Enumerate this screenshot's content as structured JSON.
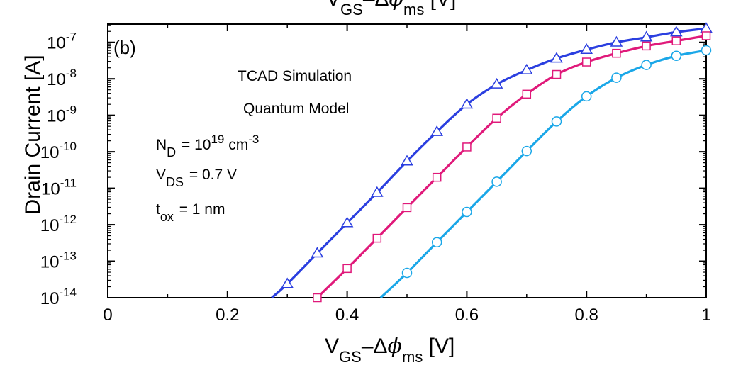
{
  "chart_data": {
    "type": "line",
    "xlim": [
      0,
      1
    ],
    "ylim_log10": [
      -14,
      -6.5
    ],
    "y_scale": "log",
    "x_ticks": [
      "0",
      "0.2",
      "0.4",
      "0.6",
      "0.8",
      "1"
    ],
    "x_tick_values": [
      0,
      0.2,
      0.4,
      0.6,
      0.8,
      1.0
    ],
    "y_tick_exponents": [
      "-7",
      "-8",
      "-9",
      "-10",
      "-11",
      "-12",
      "-13",
      "-14"
    ],
    "y_tick_base": "10",
    "y_tick_values_log10": [
      -7,
      -8,
      -9,
      -10,
      -11,
      -12,
      -13,
      -14
    ],
    "ylabel": "Drain Current [A]",
    "xlabel": {
      "main": "V",
      "sub1": "GS",
      "mid": "–Δ",
      "phi": "ϕ",
      "sub2": "ms",
      "unit": " [V]"
    },
    "top_cut_label": {
      "main": "V",
      "sub1": "GS",
      "mid": "–Δ",
      "phi": "ϕ",
      "sub2": "ms",
      "unit": " [V]"
    },
    "panel_label": "(b)",
    "annotations": {
      "line1": "TCAD Simulation",
      "line2": "Quantum Model",
      "nd": {
        "sym": "N",
        "sub": "D",
        "eq": "  = 10",
        "exp": "19",
        "unit": " cm",
        "unit_exp": "-3"
      },
      "vds": {
        "sym": "V",
        "sub": "DS",
        "eq": "  = 0.7 V"
      },
      "tox": {
        "sym": "t",
        "sub": "ox",
        "eq": "   = 1 nm"
      }
    },
    "grid": false,
    "series": [
      {
        "marker": "triangle",
        "color": "#2b3fe0",
        "x": [
          0.3,
          0.35,
          0.4,
          0.45,
          0.5,
          0.55,
          0.6,
          0.65,
          0.7,
          0.75,
          0.8,
          0.85,
          0.9,
          0.95,
          1.0
        ],
        "log10_y": [
          -13.62,
          -12.78,
          -11.95,
          -11.12,
          -10.26,
          -9.45,
          -8.7,
          -8.15,
          -7.76,
          -7.44,
          -7.2,
          -7.0,
          -6.86,
          -6.72,
          -6.62
        ],
        "line_start": [
          0.274,
          -14.0
        ]
      },
      {
        "marker": "square",
        "color": "#e0197a",
        "x": [
          0.35,
          0.4,
          0.45,
          0.5,
          0.55,
          0.6,
          0.65,
          0.7,
          0.75,
          0.8,
          0.85,
          0.9,
          0.95,
          1.0
        ],
        "log10_y": [
          -14.0,
          -13.2,
          -12.37,
          -11.53,
          -10.7,
          -9.87,
          -9.08,
          -8.42,
          -7.88,
          -7.54,
          -7.3,
          -7.1,
          -6.96,
          -6.82
        ],
        "line_start": [
          0.35,
          -14.0
        ]
      },
      {
        "marker": "circle",
        "color": "#1aa7e8",
        "x": [
          0.5,
          0.55,
          0.6,
          0.65,
          0.7,
          0.75,
          0.8,
          0.85,
          0.9,
          0.95,
          1.0
        ],
        "log10_y": [
          -13.32,
          -12.48,
          -11.65,
          -10.82,
          -9.98,
          -9.17,
          -8.48,
          -7.97,
          -7.62,
          -7.37,
          -7.22
        ],
        "line_start": [
          0.456,
          -14.0
        ]
      }
    ]
  }
}
